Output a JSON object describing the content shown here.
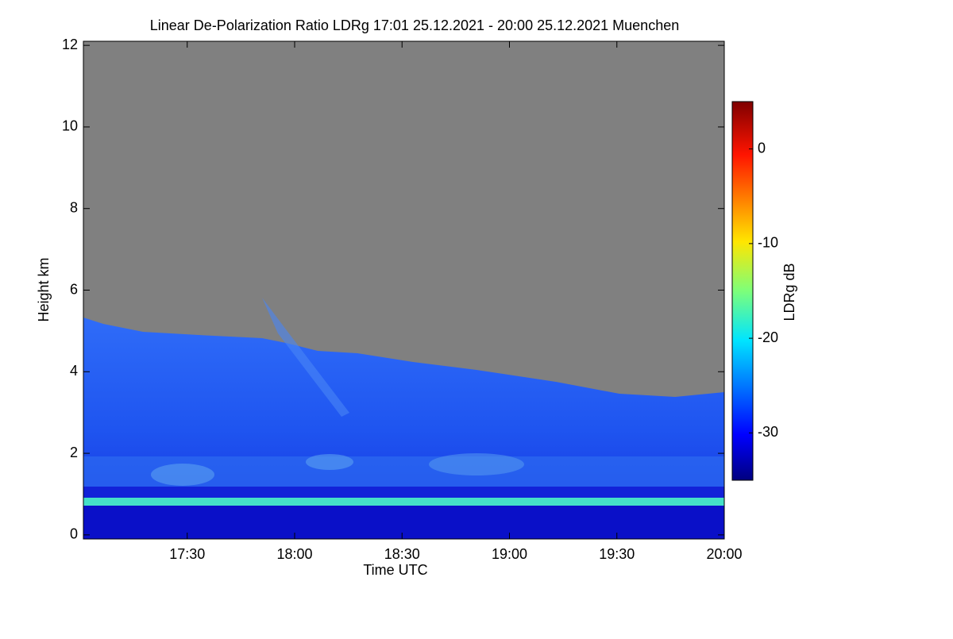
{
  "chart_data": {
    "type": "heatmap",
    "title": "Linear De-Polarization Ratio LDRg   17:01 25.12.2021 - 20:00 25.12.2021 Muenchen",
    "xlabel": "Time UTC",
    "ylabel": "Height km",
    "colorbar_label": "LDRg dB",
    "xlim": [
      17.0167,
      20.0
    ],
    "xticks": [
      {
        "value": 17.5,
        "label": "17:30"
      },
      {
        "value": 18,
        "label": "18:00"
      },
      {
        "value": 18.5,
        "label": "18:30"
      },
      {
        "value": 19,
        "label": "19:00"
      },
      {
        "value": 19.5,
        "label": "19:30"
      },
      {
        "value": 20,
        "label": "20:00"
      }
    ],
    "ylim": [
      -0.1,
      12.1
    ],
    "yticks": [
      0,
      2,
      4,
      6,
      8,
      10,
      12
    ],
    "clim": [
      -35,
      5
    ],
    "cticks": [
      0,
      -10,
      -20,
      -30
    ]
  }
}
